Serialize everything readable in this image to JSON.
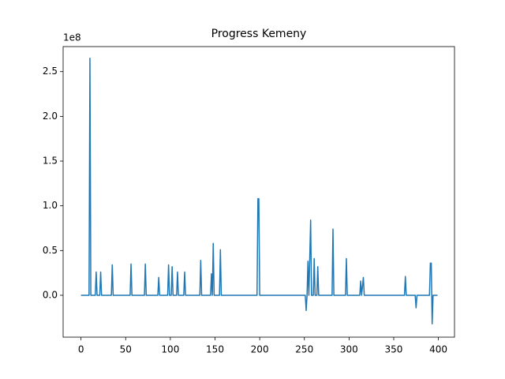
{
  "chart_data": {
    "type": "line",
    "title": "Progress Kemeny",
    "y_offset_label": "1e8",
    "x": [
      0,
      9,
      10,
      11,
      16,
      17,
      18,
      21,
      22,
      23,
      34,
      35,
      36,
      55,
      56,
      57,
      71,
      72,
      73,
      86,
      87,
      88,
      97,
      98,
      99,
      101,
      102,
      103,
      107,
      108,
      109,
      115,
      116,
      117,
      133,
      134,
      135,
      145,
      146,
      147,
      148,
      149,
      155,
      156,
      157,
      197,
      198,
      199,
      200,
      251,
      252,
      253,
      254,
      255,
      257,
      258,
      260,
      261,
      262,
      264,
      265,
      266,
      281,
      282,
      283,
      296,
      297,
      298,
      312,
      313,
      314,
      316,
      317,
      362,
      363,
      364,
      374,
      375,
      376,
      390,
      391,
      392,
      393,
      394,
      399
    ],
    "series": [
      {
        "color": "#1f77b4",
        "values": [
          0,
          0,
          2.65,
          0,
          0,
          0.26,
          0,
          0,
          0.26,
          0,
          0,
          0.34,
          0,
          0,
          0.35,
          0,
          0,
          0.35,
          0,
          0,
          0.2,
          0,
          0,
          0.34,
          0,
          0,
          0.32,
          0,
          0,
          0.26,
          0,
          0,
          0.26,
          0,
          0,
          0.39,
          0,
          0,
          0.24,
          0,
          0.58,
          0,
          0,
          0.51,
          0,
          0,
          1.08,
          1.08,
          0,
          0,
          -0.17,
          0,
          0.38,
          0,
          0.84,
          0,
          0,
          0.41,
          0,
          0,
          0.32,
          0,
          0,
          0.74,
          0,
          0,
          0.41,
          0,
          0,
          0.16,
          0,
          0.2,
          0,
          0,
          0.21,
          0,
          0,
          -0.14,
          0,
          0,
          0.36,
          0.36,
          -0.32,
          0,
          0
        ]
      }
    ],
    "xlim": [
      -20,
      418
    ],
    "ylim": [
      -0.468,
      2.78
    ],
    "xticks": [
      0,
      50,
      100,
      150,
      200,
      250,
      300,
      350,
      400
    ],
    "yticks": [
      {
        "value": 0,
        "label": "0.0"
      },
      0.5,
      {
        "value": 1,
        "label": "1.0"
      },
      1.5,
      {
        "value": 2,
        "label": "2.0"
      },
      2.5
    ]
  }
}
